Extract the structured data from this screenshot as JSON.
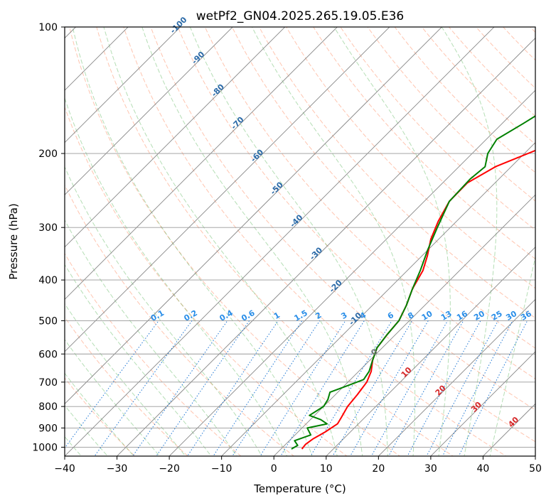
{
  "chart_data": {
    "type": "line",
    "subtype": "skew-t log-p",
    "title": "wetPf2_GN04.2025.265.19.05.E36",
    "xlabel": "Temperature (°C)",
    "ylabel": "Pressure (hPa)",
    "xlim": [
      -40,
      50
    ],
    "ylim": [
      1050,
      100
    ],
    "x_ticks": [
      -40,
      -30,
      -20,
      -10,
      0,
      10,
      20,
      30,
      40,
      50
    ],
    "x_tick_labels": [
      "−40",
      "−30",
      "−20",
      "−10",
      "0",
      "10",
      "20",
      "30",
      "40",
      "50"
    ],
    "y_ticks": [
      1000,
      900,
      800,
      700,
      600,
      500,
      400,
      300,
      200,
      100
    ],
    "y_tick_labels": [
      "1000",
      "900",
      "800",
      "700",
      "600",
      "500",
      "400",
      "300",
      "200",
      "100"
    ],
    "grid": true,
    "isotherm_labels": [
      {
        "value": -100,
        "text": "-100"
      },
      {
        "value": -90,
        "text": "-90"
      },
      {
        "value": -80,
        "text": "-80"
      },
      {
        "value": -70,
        "text": "-70"
      },
      {
        "value": -60,
        "text": "-60"
      },
      {
        "value": -50,
        "text": "-50"
      },
      {
        "value": -40,
        "text": "-40"
      },
      {
        "value": -30,
        "text": "-30"
      },
      {
        "value": -20,
        "text": "-20"
      },
      {
        "value": -10,
        "text": "-10"
      },
      {
        "value": 0,
        "text": "0"
      },
      {
        "value": 10,
        "text": "10"
      },
      {
        "value": 20,
        "text": "20"
      },
      {
        "value": 30,
        "text": "30"
      },
      {
        "value": 40,
        "text": "40"
      }
    ],
    "mixing_ratio_labels": [
      "0.1",
      "0.2",
      "0.4",
      "0.6",
      "1",
      "1.5",
      "2",
      "3",
      "4",
      "6",
      "8",
      "10",
      "13",
      "16",
      "20",
      "25",
      "30",
      "36"
    ],
    "mixing_ratio_label_pressure": 500,
    "series": [
      {
        "name": "Temperature",
        "color": "#ff0000",
        "points": [
          {
            "p": 1010,
            "t": 4.0
          },
          {
            "p": 985,
            "t": 3.8
          },
          {
            "p": 955,
            "t": 4.2
          },
          {
            "p": 920,
            "t": 5.2
          },
          {
            "p": 880,
            "t": 6.0
          },
          {
            "p": 850,
            "t": 5.5
          },
          {
            "p": 800,
            "t": 4.6
          },
          {
            "p": 750,
            "t": 4.2
          },
          {
            "p": 700,
            "t": 3.6
          },
          {
            "p": 660,
            "t": 2.4
          },
          {
            "p": 620,
            "t": 0.5
          },
          {
            "p": 580,
            "t": -1.0
          },
          {
            "p": 540,
            "t": -1.6
          },
          {
            "p": 500,
            "t": -2.0
          },
          {
            "p": 460,
            "t": -3.5
          },
          {
            "p": 420,
            "t": -5.5
          },
          {
            "p": 380,
            "t": -7.0
          },
          {
            "p": 350,
            "t": -9.0
          },
          {
            "p": 320,
            "t": -11.5
          },
          {
            "p": 290,
            "t": -13.5
          },
          {
            "p": 260,
            "t": -15.2
          },
          {
            "p": 235,
            "t": -15.3
          },
          {
            "p": 215,
            "t": -13.0
          },
          {
            "p": 195,
            "t": -8.0
          },
          {
            "p": 175,
            "t": -0.5
          },
          {
            "p": 160,
            "t": 4.0
          },
          {
            "p": 150,
            "t": 5.5
          },
          {
            "p": 140,
            "t": 6.0
          },
          {
            "p": 130,
            "t": 6.5
          },
          {
            "p": 120,
            "t": 8.0
          },
          {
            "p": 110,
            "t": 10.5
          },
          {
            "p": 100,
            "t": 12.0
          }
        ]
      },
      {
        "name": "Dewpoint",
        "color": "#008000",
        "points": [
          {
            "p": 1010,
            "t": 2.0
          },
          {
            "p": 990,
            "t": 2.5
          },
          {
            "p": 965,
            "t": 1.0
          },
          {
            "p": 935,
            "t": 3.0
          },
          {
            "p": 900,
            "t": 1.0
          },
          {
            "p": 880,
            "t": 4.0
          },
          {
            "p": 860,
            "t": 2.0
          },
          {
            "p": 840,
            "t": -1.0
          },
          {
            "p": 800,
            "t": 0.0
          },
          {
            "p": 770,
            "t": -0.5
          },
          {
            "p": 740,
            "t": -1.5
          },
          {
            "p": 715,
            "t": 0.5
          },
          {
            "p": 690,
            "t": 2.5
          },
          {
            "p": 660,
            "t": 2.0
          },
          {
            "p": 620,
            "t": 0.5
          },
          {
            "p": 580,
            "t": -1.0
          },
          {
            "p": 540,
            "t": -1.6
          },
          {
            "p": 500,
            "t": -2.0
          },
          {
            "p": 460,
            "t": -3.5
          },
          {
            "p": 420,
            "t": -5.5
          },
          {
            "p": 380,
            "t": -7.5
          },
          {
            "p": 340,
            "t": -10.0
          },
          {
            "p": 300,
            "t": -12.5
          },
          {
            "p": 260,
            "t": -15.2
          },
          {
            "p": 230,
            "t": -15.5
          },
          {
            "p": 215,
            "t": -15.0
          },
          {
            "p": 200,
            "t": -17.0
          },
          {
            "p": 185,
            "t": -18.0
          },
          {
            "p": 170,
            "t": -16.0
          },
          {
            "p": 155,
            "t": -14.0
          },
          {
            "p": 140,
            "t": -11.0
          },
          {
            "p": 125,
            "t": -7.0
          },
          {
            "p": 112,
            "t": -4.0
          },
          {
            "p": 100,
            "t": 0.0
          }
        ]
      }
    ]
  }
}
